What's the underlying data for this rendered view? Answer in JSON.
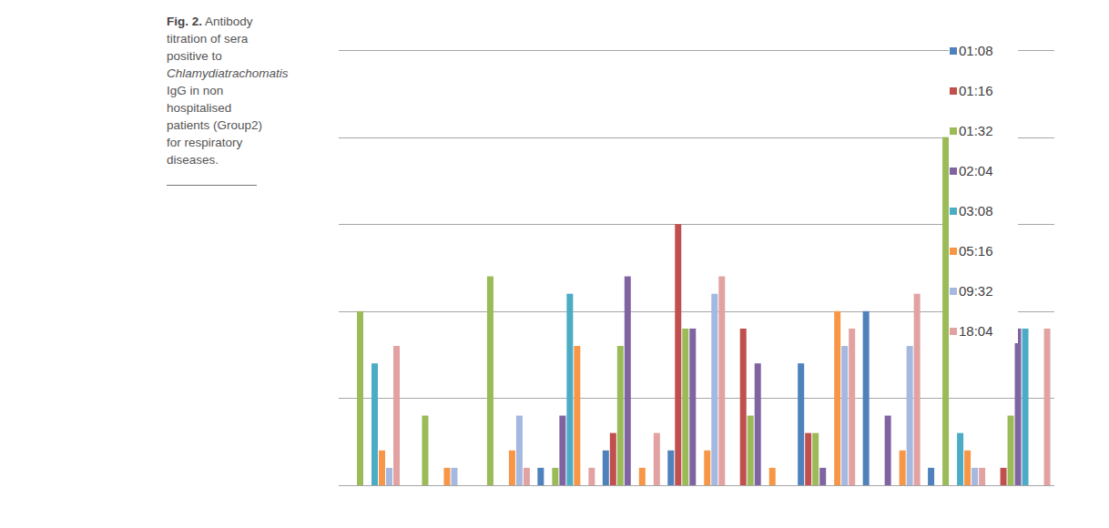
{
  "caption": {
    "label": "Fig. 2.",
    "text": [
      "Antibody titration of sera positive to",
      "Chlamydiatrachomatis",
      "IgG in non hospitalised patients (Group2) for respiratory diseases."
    ]
  },
  "chart_data": {
    "type": "bar",
    "categories": [
      null,
      null,
      null,
      null,
      null,
      null,
      null,
      null,
      null,
      null,
      null
    ],
    "series": [
      {
        "name": "01:08",
        "color": "#4f81bd",
        "values": [
          0,
          0,
          0,
          0.2,
          0.4,
          0.4,
          0,
          1.4,
          2.0,
          0.2,
          0
        ]
      },
      {
        "name": "01:16",
        "color": "#c0504d",
        "values": [
          0,
          0,
          0,
          0,
          0.6,
          3.0,
          1.8,
          0.6,
          0,
          0,
          0.2
        ]
      },
      {
        "name": "01:32",
        "color": "#9bbb59",
        "values": [
          2.0,
          0.8,
          2.4,
          0.2,
          1.6,
          1.8,
          0.8,
          0.6,
          0,
          4.0,
          0.8
        ]
      },
      {
        "name": "02:04",
        "color": "#8064a2",
        "values": [
          0,
          0,
          0,
          0.8,
          2.4,
          1.8,
          1.4,
          0.2,
          0.8,
          0,
          1.8
        ]
      },
      {
        "name": "03:08",
        "color": "#4bacc6",
        "values": [
          1.4,
          0,
          0,
          2.2,
          0,
          0,
          0,
          0,
          0,
          0.6,
          1.8
        ]
      },
      {
        "name": "05:16",
        "color": "#f79646",
        "values": [
          0.4,
          0.2,
          0.4,
          1.6,
          0.2,
          0.4,
          0.2,
          2.0,
          0.4,
          0.4,
          0
        ]
      },
      {
        "name": "09:32",
        "color": "#a5b8e0",
        "values": [
          0.2,
          0.2,
          0.8,
          0,
          0,
          2.2,
          0,
          1.6,
          1.6,
          0.2,
          0
        ]
      },
      {
        "name": "18:04",
        "color": "#e3a2a2",
        "values": [
          1.6,
          0,
          0.2,
          0.2,
          0.6,
          2.4,
          0,
          1.8,
          2.2,
          0.2,
          1.8
        ]
      }
    ],
    "ylim": [
      0,
      5
    ],
    "yticks": [
      0,
      1,
      2,
      3,
      4,
      5
    ],
    "grid": true,
    "legend": "right",
    "tick_labels": false
  }
}
